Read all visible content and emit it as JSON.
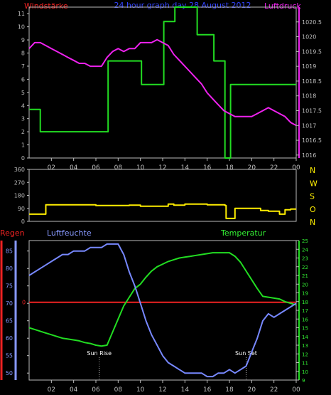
{
  "header": {
    "left_title": "Windstärke",
    "center_title": "24 hour graph day 28 August 2012",
    "right_title": "Luftdruck"
  },
  "colors": {
    "background": "#000000",
    "frame": "#bdbdbd",
    "wind_speed": "#22dd22",
    "pressure": "#ee22ee",
    "wind_direction": "#ffee00",
    "rain": "#ee2222",
    "humidity": "#7788ff",
    "temperature": "#22dd22",
    "marker": "#bdbdbd",
    "title_red": "#ee2222",
    "title_blue": "#3344ff",
    "label_humidity": "#8899ff",
    "label_temperature": "#33ee33"
  },
  "chart_data": [
    {
      "type": "line",
      "id": "wind-pressure",
      "title": "",
      "x_ticks": [
        "02",
        "04",
        "06",
        "08",
        "10",
        "12",
        "14",
        "16",
        "18",
        "20",
        "22",
        "00"
      ],
      "xlim": [
        0,
        24
      ],
      "ylabel": "Windstärke",
      "ylabel_right": "Luftdruck",
      "ylim": [
        0,
        11.5
      ],
      "y_ticks": [
        0,
        1,
        2,
        3,
        4,
        5,
        6,
        7,
        8,
        9,
        10,
        11
      ],
      "y2lim": [
        1015.9,
        1021.0
      ],
      "y2_ticks": [
        "1016",
        "1016.5",
        "1017",
        "1017.5",
        "1018",
        "1018.5",
        "1019",
        "1019.5",
        "1020",
        "1020.5"
      ],
      "series": [
        {
          "name": "Windstärke",
          "axis": "left",
          "color": "#22dd22",
          "step": true,
          "x": [
            0,
            1,
            7,
            7.1,
            10,
            10.1,
            12,
            12.1,
            13,
            13.1,
            15,
            15.1,
            16.5,
            16.6,
            17.5,
            17.6,
            18,
            18.1,
            20,
            24
          ],
          "y": [
            3.7,
            2.0,
            2.0,
            7.4,
            7.4,
            5.6,
            5.6,
            10.4,
            10.4,
            11.5,
            11.5,
            9.4,
            9.4,
            7.4,
            7.4,
            0,
            0,
            5.6,
            5.6,
            5.6
          ]
        },
        {
          "name": "Luftdruck",
          "axis": "right",
          "color": "#ee22ee",
          "step": false,
          "x": [
            0,
            0.5,
            1,
            1.5,
            2,
            2.5,
            3,
            3.5,
            4,
            4.5,
            5,
            5.5,
            6,
            6.5,
            7,
            7.5,
            8,
            8.5,
            9,
            9.5,
            10,
            10.5,
            11,
            11.5,
            12,
            12.5,
            13,
            13.5,
            14,
            14.5,
            15,
            15.5,
            16,
            16.5,
            17,
            17.5,
            18,
            18.5,
            19,
            19.5,
            20,
            20.5,
            21,
            21.5,
            22,
            22.5,
            23,
            23.5,
            24
          ],
          "y": [
            1019.6,
            1019.8,
            1019.8,
            1019.7,
            1019.6,
            1019.5,
            1019.4,
            1019.3,
            1019.2,
            1019.1,
            1019.1,
            1019.0,
            1019.0,
            1019.0,
            1019.3,
            1019.5,
            1019.6,
            1019.5,
            1019.6,
            1019.6,
            1019.8,
            1019.8,
            1019.8,
            1019.9,
            1019.8,
            1019.7,
            1019.4,
            1019.2,
            1019.0,
            1018.8,
            1018.6,
            1018.4,
            1018.1,
            1017.9,
            1017.7,
            1017.5,
            1017.4,
            1017.3,
            1017.3,
            1017.3,
            1017.3,
            1017.4,
            1017.5,
            1017.6,
            1017.5,
            1017.4,
            1017.3,
            1017.1,
            1017.0
          ]
        }
      ]
    },
    {
      "type": "line",
      "id": "wind-direction",
      "title": "",
      "xlim": [
        0,
        24
      ],
      "ylim": [
        0,
        360
      ],
      "y_ticks": [
        0,
        90,
        180,
        270,
        360
      ],
      "y_right_labels": [
        "N",
        "W",
        "S",
        "O",
        "N"
      ],
      "series": [
        {
          "name": "Windrichtung",
          "color": "#ffee00",
          "step": true,
          "x": [
            0,
            1,
            1.5,
            5,
            6,
            8,
            9,
            10,
            12,
            12.5,
            13,
            14,
            15,
            16,
            17,
            17.6,
            17.7,
            18.3,
            18.5,
            20,
            20.8,
            21.5,
            22.5,
            23,
            23.5,
            24
          ],
          "y": [
            50,
            50,
            115,
            115,
            110,
            110,
            112,
            105,
            105,
            120,
            112,
            120,
            120,
            115,
            115,
            110,
            20,
            20,
            90,
            90,
            75,
            70,
            50,
            80,
            85,
            85
          ]
        }
      ]
    },
    {
      "type": "line",
      "id": "humidity-temperature",
      "title": "",
      "xlim": [
        0,
        24
      ],
      "x_ticks": [
        "02",
        "04",
        "06",
        "08",
        "10",
        "12",
        "14",
        "16",
        "18",
        "20",
        "22",
        "00"
      ],
      "ylabel": "Luftfeuchte",
      "ylabel_right": "Temperatur",
      "ylabel_rain": "Regen",
      "ylim": [
        48,
        88
      ],
      "y_ticks": [
        50,
        55,
        60,
        65,
        70,
        75,
        80,
        85
      ],
      "y2lim": [
        9,
        25
      ],
      "y2_ticks": [
        9,
        10,
        11,
        12,
        13,
        14,
        15,
        16,
        17,
        18,
        19,
        20,
        21,
        22,
        23,
        24,
        25
      ],
      "rain_ticks": [
        0
      ],
      "rain_zero_y": 70.3,
      "annotations": [
        {
          "text": "Sun Rise",
          "x": 6.3
        },
        {
          "text": "Sun Set",
          "x": 19.5
        }
      ],
      "series": [
        {
          "name": "Luftfeuchte",
          "axis": "left",
          "color": "#7788ff",
          "step": false,
          "x": [
            0,
            0.5,
            1,
            1.5,
            2,
            2.5,
            3,
            3.5,
            4,
            4.5,
            5,
            5.5,
            6,
            6.5,
            7,
            7.5,
            8,
            8.5,
            9,
            9.5,
            10,
            10.5,
            11,
            11.5,
            12,
            12.5,
            13,
            13.5,
            14,
            14.5,
            15,
            15.5,
            16,
            16.5,
            17,
            17.5,
            18,
            18.5,
            19,
            19.5,
            20,
            20.5,
            21,
            21.5,
            22,
            22.5,
            23,
            23.5,
            24
          ],
          "y": [
            78,
            79,
            80,
            81,
            82,
            83,
            84,
            84,
            85,
            85,
            85,
            86,
            86,
            86,
            87,
            87,
            87,
            84,
            79,
            75,
            70,
            65,
            61,
            58,
            55,
            53,
            52,
            51,
            50,
            50,
            50,
            50,
            49,
            49,
            50,
            50,
            51,
            50,
            51,
            52,
            56,
            60,
            65,
            67,
            66,
            67,
            68,
            69,
            70
          ]
        },
        {
          "name": "Temperatur",
          "axis": "right",
          "color": "#22dd22",
          "step": false,
          "x": [
            0,
            0.5,
            1,
            1.5,
            2,
            2.5,
            3,
            3.5,
            4,
            4.5,
            5,
            5.5,
            6,
            6.5,
            7,
            7.5,
            8,
            8.5,
            9,
            9.5,
            10,
            10.5,
            11,
            11.5,
            12,
            12.5,
            13,
            13.5,
            14,
            14.5,
            15,
            15.5,
            16,
            16.5,
            17,
            17.5,
            18,
            18.5,
            19,
            19.5,
            20,
            20.5,
            21,
            21.5,
            22,
            22.5,
            23,
            23.5,
            24
          ],
          "y": [
            15.0,
            14.8,
            14.6,
            14.4,
            14.2,
            14.0,
            13.8,
            13.7,
            13.6,
            13.5,
            13.3,
            13.2,
            13.0,
            12.9,
            13.0,
            14.5,
            16.0,
            17.5,
            18.5,
            19.5,
            20.0,
            20.8,
            21.5,
            22.0,
            22.3,
            22.6,
            22.8,
            23.0,
            23.1,
            23.2,
            23.3,
            23.4,
            23.5,
            23.6,
            23.6,
            23.6,
            23.6,
            23.2,
            22.5,
            21.5,
            20.5,
            19.5,
            18.6,
            18.5,
            18.4,
            18.3,
            18.0,
            17.8,
            17.6
          ]
        },
        {
          "name": "Regen",
          "axis": "rain",
          "color": "#ee2222",
          "step": false,
          "x": [
            0,
            24
          ],
          "y": [
            0,
            0
          ]
        }
      ]
    }
  ]
}
